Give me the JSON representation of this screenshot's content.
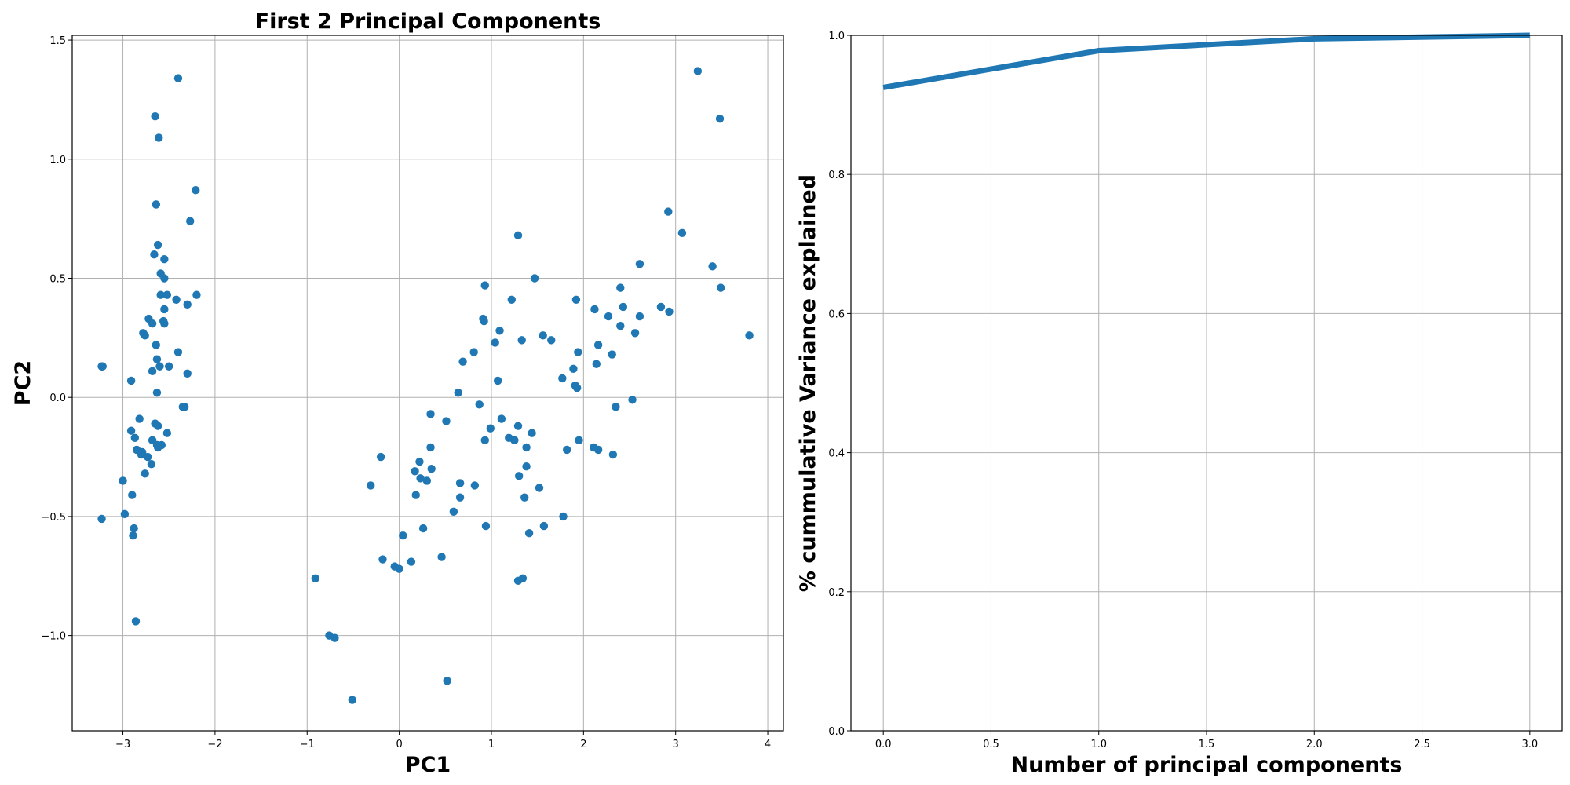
{
  "colors": {
    "series": "#1f77b4",
    "grid": "#b0b0b0",
    "axis": "#000000",
    "background": "#ffffff"
  },
  "chart_data": [
    {
      "type": "scatter",
      "title": "First 2 Principal Components",
      "xlabel": "PC1",
      "ylabel": "PC2",
      "xlim": [
        -3.55,
        4.17
      ],
      "ylim": [
        -1.4,
        1.52
      ],
      "grid": true,
      "xticks": [
        -3,
        -2,
        -1,
        0,
        1,
        2,
        3,
        4
      ],
      "yticks": [
        -1.0,
        -0.5,
        0.0,
        0.5,
        1.0,
        1.5
      ],
      "xtick_labels": [
        "−3",
        "−2",
        "−1",
        "0",
        "1",
        "2",
        "3",
        "4"
      ],
      "ytick_labels": [
        "−1.0",
        "−0.5",
        "0.0",
        "0.5",
        "1.0",
        "1.5"
      ],
      "series": [
        {
          "x": [
            -3.23,
            -2.4,
            -2.65,
            -2.61,
            -2.64,
            -2.64,
            -2.21,
            -2.27,
            -2.66,
            -2.55,
            -2.62,
            -2.59,
            -2.55,
            -2.59,
            -2.55,
            -2.52,
            -2.2,
            -2.42,
            -2.3,
            -2.55,
            -2.56,
            -2.72,
            -2.68,
            -2.63,
            -2.78,
            -2.76,
            -2.64,
            -2.6,
            -2.68,
            -2.5,
            -2.4,
            -3.22,
            -2.33,
            -2.63,
            -2.91,
            -2.65,
            -2.62,
            -2.3,
            -2.35,
            -2.82,
            -2.91,
            -2.68,
            -2.63,
            -2.52,
            -2.58,
            -2.62,
            -2.85,
            -2.79,
            -2.73,
            -2.76,
            -2.69,
            -3.0,
            -2.98,
            -2.89,
            -2.86,
            -3.23,
            -2.8,
            -2.87,
            -2.88,
            -2.9
          ],
          "y": [
            0.13,
            1.34,
            1.18,
            1.09,
            0.81,
            0.81,
            0.87,
            0.74,
            0.6,
            0.58,
            0.64,
            0.52,
            0.5,
            0.43,
            0.37,
            0.43,
            0.43,
            0.41,
            0.39,
            0.31,
            0.32,
            0.33,
            0.31,
            0.16,
            0.27,
            0.26,
            0.22,
            0.13,
            0.11,
            0.13,
            0.19,
            0.13,
            -0.04,
            0.02,
            0.07,
            -0.11,
            -0.12,
            0.1,
            -0.04,
            -0.09,
            -0.14,
            -0.18,
            -0.2,
            -0.15,
            -0.2,
            -0.21,
            -0.22,
            -0.23,
            -0.25,
            -0.32,
            -0.28,
            -0.35,
            -0.49,
            -0.58,
            -0.94,
            -0.51,
            -0.24,
            -0.17,
            -0.55,
            -0.41
          ]
        },
        {
          "x": [
            3.24,
            3.48,
            2.92,
            3.07,
            3.4,
            3.49,
            3.8,
            2.61,
            2.4,
            2.84,
            2.93,
            2.61,
            2.43,
            2.4,
            2.27,
            2.56,
            2.16,
            2.12,
            2.31,
            1.92,
            1.94,
            2.14,
            2.11,
            2.16,
            1.77,
            1.89,
            1.93,
            1.47,
            1.29,
            1.22,
            1.56,
            1.65,
            1.33,
            1.09,
            1.04,
            0.93,
            0.91,
            0.92,
            0.69,
            0.81,
            0.64,
            1.07,
            1.95,
            2.53,
            2.35,
            2.32,
            1.82,
            1.91,
            0.87,
            0.93,
            1.11,
            1.19,
            1.29,
            1.25,
            1.38,
            1.44,
            1.38,
            0.99,
            0.34,
            0.51,
            0.34,
            0.22,
            0.3,
            0.23,
            0.66,
            0.66,
            0.82,
            0.35,
            1.3,
            1.52,
            1.36,
            0.59,
            0.94,
            0.26,
            0.04,
            1.78,
            1.57,
            1.41,
            1.34,
            1.29,
            0.18,
            0.17,
            0.13,
            -0.18,
            -0.31,
            -0.2,
            -0.05,
            0.0,
            0.46,
            0.52,
            -0.76,
            -0.7,
            -0.51,
            -0.91
          ],
          "y": [
            1.37,
            1.17,
            0.78,
            0.69,
            0.55,
            0.46,
            0.26,
            0.56,
            0.46,
            0.38,
            0.36,
            0.34,
            0.38,
            0.3,
            0.34,
            0.27,
            0.22,
            0.37,
            0.18,
            0.41,
            0.19,
            0.14,
            -0.21,
            -0.22,
            0.08,
            0.12,
            0.04,
            0.5,
            0.68,
            0.41,
            0.26,
            0.24,
            0.24,
            0.28,
            0.23,
            0.47,
            0.33,
            0.32,
            0.15,
            0.19,
            0.02,
            0.07,
            -0.18,
            -0.01,
            -0.04,
            -0.24,
            -0.22,
            0.05,
            -0.03,
            -0.18,
            -0.09,
            -0.17,
            -0.12,
            -0.18,
            -0.21,
            -0.15,
            -0.29,
            -0.13,
            -0.07,
            -0.1,
            -0.21,
            -0.27,
            -0.35,
            -0.34,
            -0.36,
            -0.42,
            -0.37,
            -0.3,
            -0.33,
            -0.38,
            -0.42,
            -0.48,
            -0.54,
            -0.55,
            -0.58,
            -0.5,
            -0.54,
            -0.57,
            -0.76,
            -0.77,
            -0.41,
            -0.31,
            -0.69,
            -0.68,
            -0.37,
            -0.25,
            -0.71,
            -0.72,
            -0.67,
            -1.19,
            -1.0,
            -1.01,
            -1.27,
            -0.76
          ]
        }
      ]
    },
    {
      "type": "line",
      "title": "",
      "xlabel": "Number of principal components",
      "ylabel": "% cummulative Variance explained",
      "xlim": [
        -0.15,
        3.15
      ],
      "ylim": [
        0.0,
        1.0
      ],
      "grid": true,
      "xticks": [
        0.0,
        0.5,
        1.0,
        1.5,
        2.0,
        2.5,
        3.0
      ],
      "yticks": [
        0.0,
        0.2,
        0.4,
        0.6,
        0.8,
        1.0
      ],
      "xtick_labels": [
        "0.0",
        "0.5",
        "1.0",
        "1.5",
        "2.0",
        "2.5",
        "3.0"
      ],
      "ytick_labels": [
        "0.0",
        "0.2",
        "0.4",
        "0.6",
        "0.8",
        "1.0"
      ],
      "x": [
        0,
        1,
        2,
        3
      ],
      "values": [
        0.925,
        0.978,
        0.995,
        1.0
      ]
    }
  ]
}
